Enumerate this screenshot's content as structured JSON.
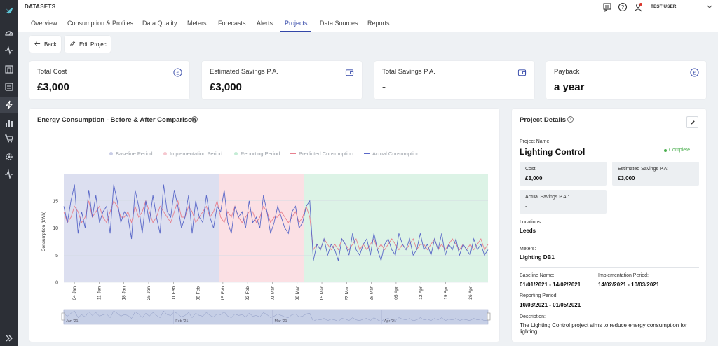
{
  "app": {
    "section_title": "DATASETS",
    "user_name": "TEST USER"
  },
  "tabs": [
    {
      "label": "Overview"
    },
    {
      "label": "Consumption & Profiles"
    },
    {
      "label": "Data Quality"
    },
    {
      "label": "Meters"
    },
    {
      "label": "Forecasts"
    },
    {
      "label": "Alerts"
    },
    {
      "label": "Projects"
    },
    {
      "label": "Data Sources"
    },
    {
      "label": "Reports"
    }
  ],
  "selected_tab": "Projects",
  "actions": {
    "back_label": "Back",
    "edit_label": "Edit Project"
  },
  "kpis": [
    {
      "label": "Total Cost",
      "value": "£3,000",
      "icon": "pound-circle-icon"
    },
    {
      "label": "Estimated Savings P.A.",
      "value": "£3,000",
      "icon": "wallet-icon"
    },
    {
      "label": "Total Savings P.A.",
      "value": "-",
      "icon": "wallet-icon"
    },
    {
      "label": "Payback",
      "value": "a year",
      "icon": "pound-circle-icon"
    }
  ],
  "chart_title": "Energy Consumption - Before & After Comparison",
  "chart_data": {
    "type": "line",
    "title": "Energy Consumption - Before & After Comparison",
    "xlabel": "",
    "ylabel": "Consumption (kWh)",
    "ylim": [
      0,
      20
    ],
    "yticks": [
      0,
      5,
      10,
      15
    ],
    "xticks": [
      "04 Jan",
      "11 Jan",
      "18 Jan",
      "25 Jan",
      "01 Feb",
      "08 Feb",
      "15 Feb",
      "22 Feb",
      "01 Mar",
      "08 Mar",
      "15 Mar",
      "22 Mar",
      "29 Mar",
      "05 Apr",
      "12 Apr",
      "19 Apr",
      "26 Apr"
    ],
    "x_start": "2021-01-01",
    "x_end": "2021-05-01",
    "periods": [
      {
        "name": "Baseline Period",
        "start": "2021-01-01",
        "end": "2021-02-14",
        "color": "#dcdff0"
      },
      {
        "name": "Implementation Period",
        "start": "2021-02-14",
        "end": "2021-03-10",
        "color": "#fbe0e4"
      },
      {
        "name": "Reporting Period",
        "start": "2021-03-10",
        "end": "2021-05-01",
        "color": "#dcf3e6"
      }
    ],
    "series": [
      {
        "name": "Predicted Consumption",
        "color": "#e8808f",
        "values": [
          13,
          11,
          12,
          14,
          13,
          11,
          12,
          15,
          12,
          13,
          14,
          12,
          11,
          13,
          15,
          14,
          12,
          12,
          13,
          11,
          14,
          12,
          13,
          15,
          13,
          11,
          12,
          14,
          13,
          12,
          11,
          13,
          15,
          12,
          12,
          14,
          13,
          11,
          12,
          13,
          14,
          12,
          13,
          15,
          12,
          11,
          13,
          12,
          14,
          12,
          11,
          12,
          13,
          13,
          11,
          12,
          14,
          13,
          11,
          12,
          12,
          13,
          12,
          11,
          12,
          13,
          11,
          12,
          14,
          12,
          6,
          7,
          6,
          8,
          7,
          6,
          7,
          6,
          8,
          7,
          6,
          7,
          8,
          6,
          7,
          6,
          7,
          8,
          6,
          7,
          6,
          7,
          8,
          7,
          6,
          7,
          6,
          7,
          8,
          6,
          7,
          7,
          6,
          7,
          8,
          6,
          7,
          6,
          7,
          8,
          7,
          6,
          7,
          6,
          7,
          6,
          7,
          8,
          6,
          7
        ]
      },
      {
        "name": "Actual Consumption",
        "color": "#5a68c8",
        "values": [
          14,
          11,
          15,
          18,
          9,
          13,
          10,
          17,
          12,
          16,
          11,
          13,
          14,
          9,
          18,
          15,
          11,
          13,
          12,
          8,
          17,
          14,
          9,
          15,
          11,
          16,
          12,
          9,
          18,
          13,
          12,
          17,
          14,
          10,
          12,
          16,
          9,
          15,
          12,
          11,
          16,
          12,
          10,
          14,
          13,
          17,
          11,
          9,
          14,
          12,
          13,
          10,
          15,
          11,
          12,
          10,
          16,
          13,
          9,
          11,
          14,
          12,
          10,
          9,
          13,
          14,
          10,
          11,
          14,
          15,
          4,
          7,
          6,
          8,
          5,
          7,
          6,
          4,
          8,
          7,
          5,
          9,
          6,
          5,
          7,
          8,
          5,
          9,
          6,
          4,
          7,
          8,
          6,
          5,
          9,
          7,
          6,
          8,
          5,
          6,
          9,
          6,
          7,
          5,
          8,
          6,
          9,
          5,
          7,
          6,
          8,
          5,
          7,
          6,
          5,
          8,
          6,
          7,
          5,
          6
        ]
      }
    ],
    "legend_position": "top",
    "navigator_labels": [
      "Jan '21",
      "Feb '21",
      "Mar '21",
      "Apr '21"
    ]
  },
  "project_details": {
    "title": "Project Details",
    "name_label": "Project Name:",
    "name": "Lighting Control",
    "status": "Complete",
    "cost_label": "Cost:",
    "cost": "£3,000",
    "est_savings_label": "Estimated Savings P.A:",
    "est_savings": "£3,000",
    "actual_savings_label": "Actual Savings P.A.:",
    "actual_savings": "-",
    "locations_label": "Locations:",
    "locations": "Leeds",
    "meters_label": "Meters:",
    "meters": "Lighting DB1",
    "baseline_label": "Baseline Name:",
    "baseline": "01/01/2021 - 14/02/2021",
    "implementation_label": "Implementation Period:",
    "implementation": "14/02/2021 - 10/03/2021",
    "reporting_label": "Reporting Period:",
    "reporting": "10/03/2021 - 01/05/2021",
    "description_label": "Description:",
    "description": "The Lighting Control project aims to reduce energy consumption for lighting"
  },
  "colors": {
    "accent": "#3347a8",
    "rail": "#2c2f36",
    "complete": "#4caf50"
  }
}
